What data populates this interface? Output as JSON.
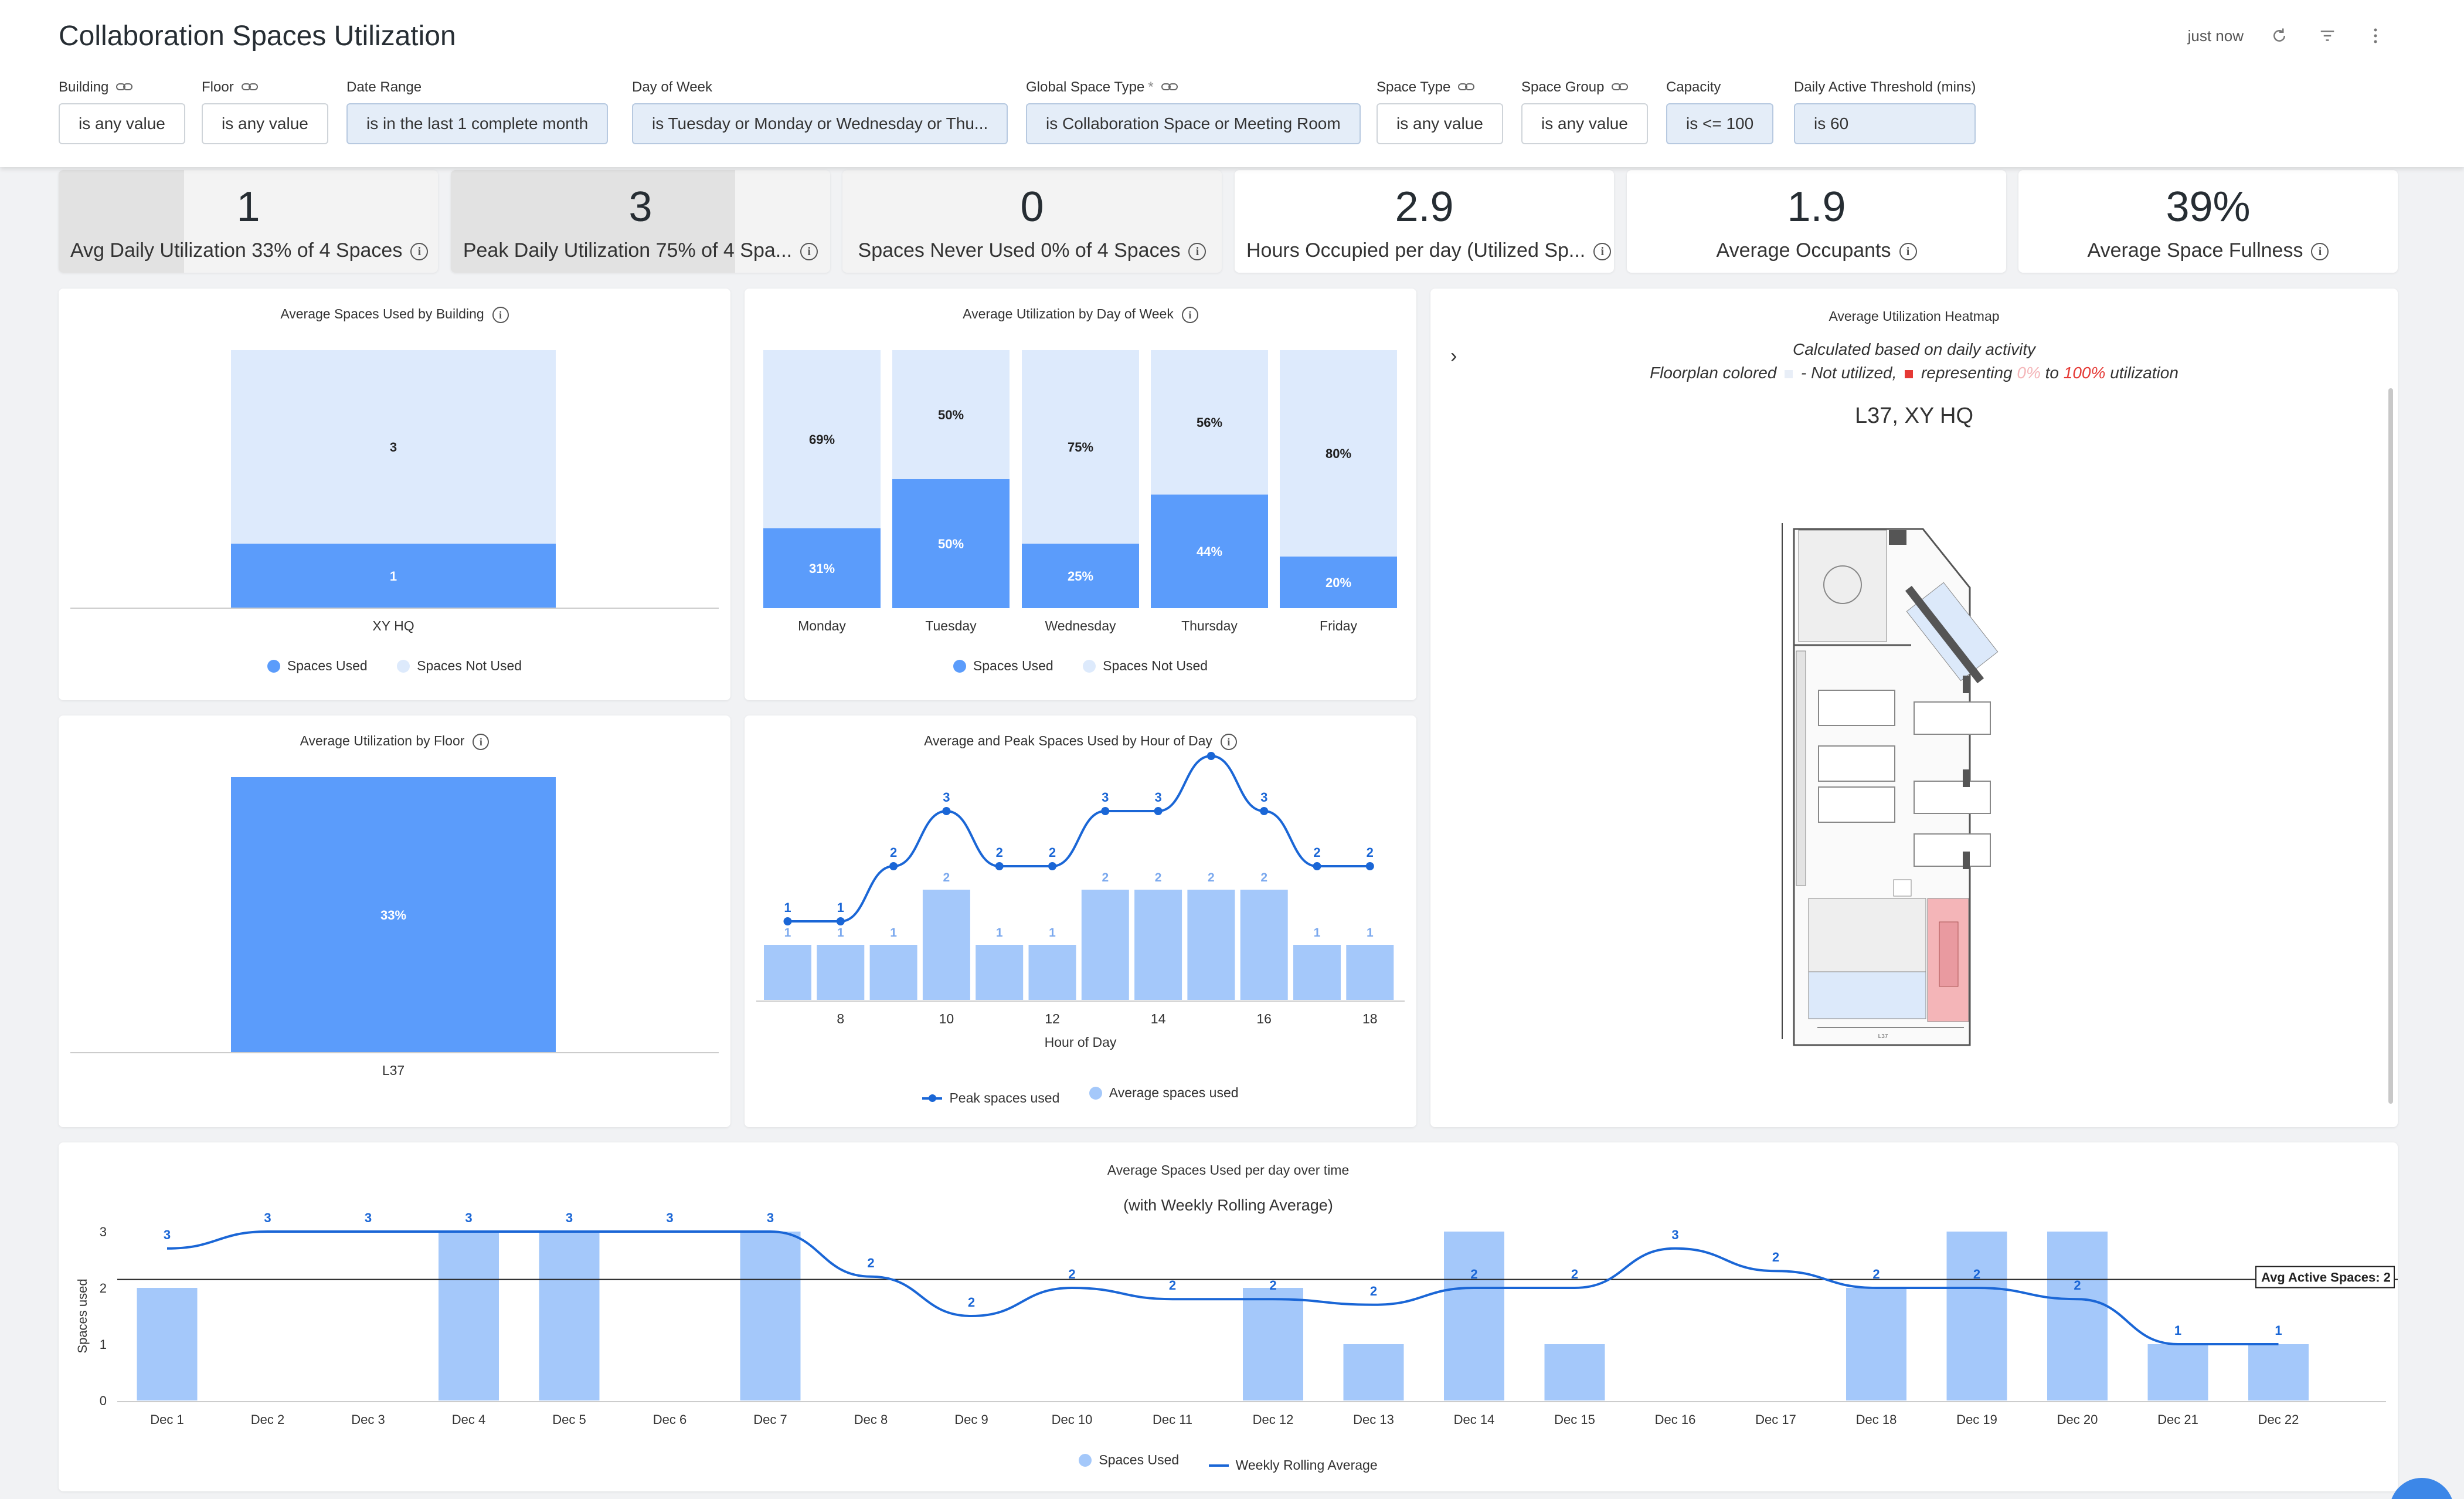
{
  "header": {
    "title": "Collaboration Spaces Utilization",
    "updated": "just now",
    "icons": [
      "refresh-icon",
      "filter-icon",
      "more-vertical-icon"
    ]
  },
  "filters": [
    {
      "label": "Building",
      "value": "is any value",
      "linked": true,
      "active": false,
      "required": false
    },
    {
      "label": "Floor",
      "value": "is any value",
      "linked": true,
      "active": false,
      "required": false
    },
    {
      "label": "Date Range",
      "value": "is in the last 1 complete month",
      "linked": false,
      "active": true,
      "required": false
    },
    {
      "label": "Day of Week",
      "value": "is Tuesday or Monday or Wednesday or Thu...",
      "linked": false,
      "active": true,
      "required": false
    },
    {
      "label": "Global Space Type",
      "value": "is Collaboration Space or Meeting Room",
      "linked": true,
      "active": true,
      "required": true
    },
    {
      "label": "Space Type",
      "value": "is any value",
      "linked": true,
      "active": false,
      "required": false
    },
    {
      "label": "Space Group",
      "value": "is any value",
      "linked": true,
      "active": false,
      "required": false
    },
    {
      "label": "Capacity",
      "value": "is <= 100",
      "linked": false,
      "active": true,
      "required": false
    },
    {
      "label": "Daily Active Threshold (mins)",
      "value": "is 60",
      "linked": false,
      "active": true,
      "required": false
    }
  ],
  "required_marker": "*",
  "kpis": [
    {
      "value": "1",
      "label": "Avg Daily Utilization 33% of 4 Spaces",
      "progress": 0.33
    },
    {
      "value": "3",
      "label": "Peak Daily Utilization 75% of 4 Spa...",
      "progress": 0.75
    },
    {
      "value": "0",
      "label": "Spaces Never Used 0% of 4 Spaces",
      "progress": 0
    },
    {
      "value": "2.9",
      "label": "Hours Occupied per day (Utilized Sp...",
      "progress": null
    },
    {
      "value": "1.9",
      "label": "Average Occupants",
      "progress": null
    },
    {
      "value": "39%",
      "label": "Average Space Fullness",
      "progress": null
    }
  ],
  "colors": {
    "used": "#5b9cfb",
    "not_used": "#ddeafc",
    "avg_bar": "#a4c8fa",
    "line": "#1a66d6",
    "heat_red": "#f4b5b8",
    "heat_blue": "#dce9fa"
  },
  "heatmap": {
    "title": "Average Utilization Heatmap",
    "subtitle": "Calculated based on daily activity",
    "legend_prefix": "Floorplan colored",
    "legend_mid": "- Not utilized,",
    "legend_rep": "representing",
    "legend_zero": "0%",
    "legend_to": "to",
    "legend_hundred": "100%",
    "legend_end": "utilization",
    "location": "L37, XY HQ",
    "floorplan_label": "L37"
  },
  "chart_data": [
    {
      "type": "bar",
      "title": "Average Spaces Used by Building",
      "categories": [
        "XY HQ"
      ],
      "stacked": true,
      "series": [
        {
          "name": "Spaces Used",
          "values": [
            1
          ]
        },
        {
          "name": "Spaces Not Used",
          "values": [
            3
          ]
        }
      ],
      "legend": "bottom"
    },
    {
      "type": "bar",
      "title": "Average Utilization by Day of Week",
      "categories": [
        "Monday",
        "Tuesday",
        "Wednesday",
        "Thursday",
        "Friday"
      ],
      "stacked": true,
      "percent": true,
      "series": [
        {
          "name": "Spaces Used",
          "values": [
            31,
            50,
            25,
            44,
            20
          ]
        },
        {
          "name": "Spaces Not Used",
          "values": [
            69,
            50,
            75,
            56,
            80
          ]
        }
      ],
      "legend": "bottom"
    },
    {
      "type": "bar",
      "title": "Average Utilization by Floor",
      "categories": [
        "L37"
      ],
      "series": [
        {
          "name": "Utilization",
          "values": [
            33
          ]
        }
      ],
      "labels": [
        "33%"
      ]
    },
    {
      "type": "bar",
      "title": "Average and Peak Spaces Used by Hour of Day",
      "xlabel": "Hour of Day",
      "x": [
        7,
        8,
        9,
        10,
        11,
        12,
        13,
        14,
        15,
        16,
        17,
        18
      ],
      "xticks": [
        8,
        10,
        12,
        14,
        16,
        18
      ],
      "series": [
        {
          "name": "Peak spaces used",
          "type": "line",
          "values": [
            1,
            1,
            2,
            3,
            2,
            2,
            3,
            3,
            4,
            3,
            2,
            2
          ]
        },
        {
          "name": "Average spaces used",
          "type": "bar",
          "values": [
            1,
            1,
            1,
            2,
            1,
            1,
            2,
            2,
            2,
            2,
            1,
            1
          ]
        }
      ],
      "legend": "bottom"
    },
    {
      "type": "bar",
      "title": "Average Spaces Used per day over time",
      "subtitle": "(with Weekly Rolling Average)",
      "ylabel": "Spaces used",
      "ylim": [
        0,
        3
      ],
      "yticks": [
        0,
        1,
        2,
        3
      ],
      "categories": [
        "Dec 1",
        "Dec 2",
        "Dec 3",
        "Dec 4",
        "Dec 5",
        "Dec 6",
        "Dec 7",
        "Dec 8",
        "Dec 9",
        "Dec 10",
        "Dec 11",
        "Dec 12",
        "Dec 13",
        "Dec 14",
        "Dec 15",
        "Dec 16",
        "Dec 17",
        "Dec 18",
        "Dec 19",
        "Dec 20",
        "Dec 21",
        "Dec 22"
      ],
      "series": [
        {
          "name": "Spaces Used",
          "type": "bar",
          "values": [
            2,
            0,
            0,
            3,
            3,
            0,
            3,
            0,
            0,
            0,
            0,
            2,
            1,
            3,
            1,
            0,
            0,
            2,
            3,
            3,
            1,
            1
          ]
        },
        {
          "name": "Weekly Rolling Average",
          "type": "line",
          "values": [
            2.7,
            3,
            3,
            3,
            3,
            3,
            3,
            2.2,
            1.5,
            2,
            1.8,
            1.8,
            1.7,
            2,
            2,
            2.7,
            2.3,
            2,
            2,
            1.8,
            1,
            1
          ]
        }
      ],
      "point_labels": [
        "3",
        "3",
        "3",
        "3",
        "3",
        "3",
        "3",
        "2",
        "2",
        "2",
        "2",
        "2",
        "2",
        "2",
        "2",
        "3",
        "2",
        "2",
        "2",
        "2",
        "1",
        "1"
      ],
      "reference_line": {
        "value": 2.15,
        "label": "Avg Active Spaces: 2"
      },
      "legend": "bottom"
    }
  ]
}
